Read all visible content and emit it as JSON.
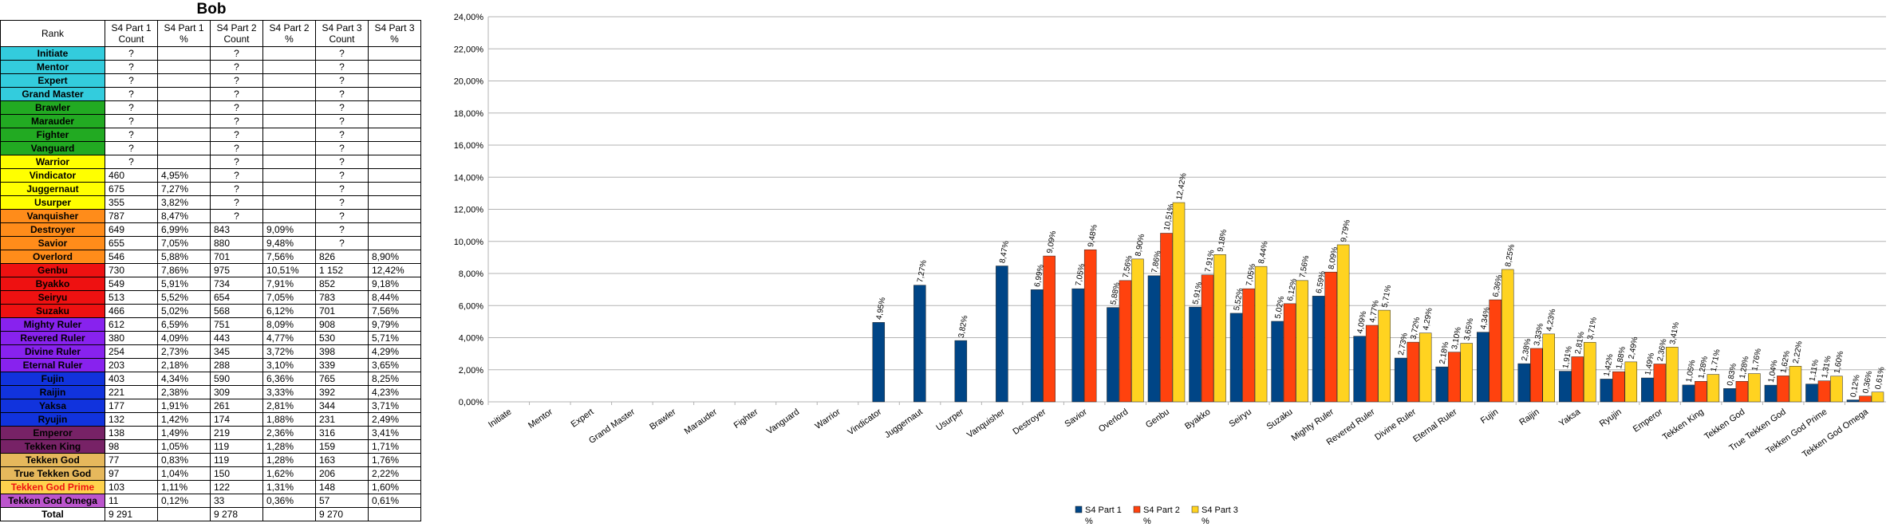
{
  "sheet": {
    "title": "Bob",
    "headers": [
      "Rank",
      "S4 Part 1 Count",
      "S4 Part 1 %",
      "S4 Part 2 Count",
      "S4 Part 2 %",
      "S4 Part 3 Count",
      "S4 Part 3 %"
    ],
    "rows": [
      {
        "rank": "Initiate",
        "bg": "#33ccdd",
        "c1": "?",
        "p1": "",
        "c2": "?",
        "p2": "",
        "c3": "?",
        "p3": ""
      },
      {
        "rank": "Mentor",
        "bg": "#33ccdd",
        "c1": "?",
        "p1": "",
        "c2": "?",
        "p2": "",
        "c3": "?",
        "p3": ""
      },
      {
        "rank": "Expert",
        "bg": "#33ccdd",
        "c1": "?",
        "p1": "",
        "c2": "?",
        "p2": "",
        "c3": "?",
        "p3": ""
      },
      {
        "rank": "Grand Master",
        "bg": "#33ccdd",
        "c1": "?",
        "p1": "",
        "c2": "?",
        "p2": "",
        "c3": "?",
        "p3": ""
      },
      {
        "rank": "Brawler",
        "bg": "#22aa22",
        "c1": "?",
        "p1": "",
        "c2": "?",
        "p2": "",
        "c3": "?",
        "p3": ""
      },
      {
        "rank": "Marauder",
        "bg": "#22aa22",
        "c1": "?",
        "p1": "",
        "c2": "?",
        "p2": "",
        "c3": "?",
        "p3": ""
      },
      {
        "rank": "Fighter",
        "bg": "#22aa22",
        "c1": "?",
        "p1": "",
        "c2": "?",
        "p2": "",
        "c3": "?",
        "p3": ""
      },
      {
        "rank": "Vanguard",
        "bg": "#22aa22",
        "c1": "?",
        "p1": "",
        "c2": "?",
        "p2": "",
        "c3": "?",
        "p3": ""
      },
      {
        "rank": "Warrior",
        "bg": "#ffff00",
        "c1": "?",
        "p1": "",
        "c2": "?",
        "p2": "",
        "c3": "?",
        "p3": ""
      },
      {
        "rank": "Vindicator",
        "bg": "#ffff00",
        "c1": "460",
        "p1": "4,95%",
        "c2": "?",
        "p2": "",
        "c3": "?",
        "p3": ""
      },
      {
        "rank": "Juggernaut",
        "bg": "#ffff00",
        "c1": "675",
        "p1": "7,27%",
        "c2": "?",
        "p2": "",
        "c3": "?",
        "p3": ""
      },
      {
        "rank": "Usurper",
        "bg": "#ffff00",
        "c1": "355",
        "p1": "3,82%",
        "c2": "?",
        "p2": "",
        "c3": "?",
        "p3": ""
      },
      {
        "rank": "Vanquisher",
        "bg": "#ff8c1a",
        "c1": "787",
        "p1": "8,47%",
        "c2": "?",
        "p2": "",
        "c3": "?",
        "p3": ""
      },
      {
        "rank": "Destroyer",
        "bg": "#ff8c1a",
        "c1": "649",
        "p1": "6,99%",
        "c2": "843",
        "p2": "9,09%",
        "c3": "?",
        "p3": ""
      },
      {
        "rank": "Savior",
        "bg": "#ff8c1a",
        "c1": "655",
        "p1": "7,05%",
        "c2": "880",
        "p2": "9,48%",
        "c3": "?",
        "p3": ""
      },
      {
        "rank": "Overlord",
        "bg": "#ff8c1a",
        "c1": "546",
        "p1": "5,88%",
        "c2": "701",
        "p2": "7,56%",
        "c3": "826",
        "p3": "8,90%"
      },
      {
        "rank": "Genbu",
        "bg": "#ee1111",
        "c1": "730",
        "p1": "7,86%",
        "c2": "975",
        "p2": "10,51%",
        "c3": "1 152",
        "p3": "12,42%"
      },
      {
        "rank": "Byakko",
        "bg": "#ee1111",
        "c1": "549",
        "p1": "5,91%",
        "c2": "734",
        "p2": "7,91%",
        "c3": "852",
        "p3": "9,18%"
      },
      {
        "rank": "Seiryu",
        "bg": "#ee1111",
        "c1": "513",
        "p1": "5,52%",
        "c2": "654",
        "p2": "7,05%",
        "c3": "783",
        "p3": "8,44%"
      },
      {
        "rank": "Suzaku",
        "bg": "#ee1111",
        "c1": "466",
        "p1": "5,02%",
        "c2": "568",
        "p2": "6,12%",
        "c3": "701",
        "p3": "7,56%"
      },
      {
        "rank": "Mighty Ruler",
        "bg": "#8822ee",
        "c1": "612",
        "p1": "6,59%",
        "c2": "751",
        "p2": "8,09%",
        "c3": "908",
        "p3": "9,79%"
      },
      {
        "rank": "Revered Ruler",
        "bg": "#8822ee",
        "c1": "380",
        "p1": "4,09%",
        "c2": "443",
        "p2": "4,77%",
        "c3": "530",
        "p3": "5,71%"
      },
      {
        "rank": "Divine Ruler",
        "bg": "#8822ee",
        "c1": "254",
        "p1": "2,73%",
        "c2": "345",
        "p2": "3,72%",
        "c3": "398",
        "p3": "4,29%"
      },
      {
        "rank": "Eternal Ruler",
        "bg": "#8822ee",
        "c1": "203",
        "p1": "2,18%",
        "c2": "288",
        "p2": "3,10%",
        "c3": "339",
        "p3": "3,65%"
      },
      {
        "rank": "Fujin",
        "bg": "#1133dd",
        "c1": "403",
        "p1": "4,34%",
        "c2": "590",
        "p2": "6,36%",
        "c3": "765",
        "p3": "8,25%"
      },
      {
        "rank": "Raijin",
        "bg": "#1133dd",
        "c1": "221",
        "p1": "2,38%",
        "c2": "309",
        "p2": "3,33%",
        "c3": "392",
        "p3": "4,23%"
      },
      {
        "rank": "Yaksa",
        "bg": "#1133dd",
        "c1": "177",
        "p1": "1,91%",
        "c2": "261",
        "p2": "2,81%",
        "c3": "344",
        "p3": "3,71%"
      },
      {
        "rank": "Ryujin",
        "bg": "#1133dd",
        "c1": "132",
        "p1": "1,42%",
        "c2": "174",
        "p2": "1,88%",
        "c3": "231",
        "p3": "2,49%"
      },
      {
        "rank": "Emperor",
        "bg": "#772266",
        "c1": "138",
        "p1": "1,49%",
        "c2": "219",
        "p2": "2,36%",
        "c3": "316",
        "p3": "3,41%"
      },
      {
        "rank": "Tekken King",
        "bg": "#772266",
        "c1": "98",
        "p1": "1,05%",
        "c2": "119",
        "p2": "1,28%",
        "c3": "159",
        "p3": "1,71%"
      },
      {
        "rank": "Tekken God",
        "bg": "#e6b85c",
        "c1": "77",
        "p1": "0,83%",
        "c2": "119",
        "p2": "1,28%",
        "c3": "163",
        "p3": "1,76%"
      },
      {
        "rank": "True Tekken God",
        "bg": "#e6b85c",
        "c1": "97",
        "p1": "1,04%",
        "c2": "150",
        "p2": "1,62%",
        "c3": "206",
        "p3": "2,22%"
      },
      {
        "rank": "Tekken God Prime",
        "bg": "#ffd24d",
        "c1": "103",
        "p1": "1,11%",
        "c2": "122",
        "p2": "1,31%",
        "c3": "148",
        "p3": "1,60%"
      },
      {
        "rank": "Tekken God Omega",
        "bg": "#bb55cc",
        "c1": "11",
        "p1": "0,12%",
        "c2": "33",
        "p2": "0,36%",
        "c3": "57",
        "p3": "0,61%"
      }
    ],
    "total": {
      "label": "Total",
      "c1": "9 291",
      "p1": "",
      "c2": "9 278",
      "p2": "",
      "c3": "9 270",
      "p3": ""
    },
    "text_colors": {
      "Tekken God Prime": "#ee1111",
      "Tekken God Omega": "#000000"
    }
  },
  "chart_data": {
    "type": "bar",
    "categories": [
      "Initiate",
      "Mentor",
      "Expert",
      "Grand Master",
      "Brawler",
      "Marauder",
      "Fighter",
      "Vanguard",
      "Warrior",
      "Vindicator",
      "Juggernaut",
      "Usurper",
      "Vanquisher",
      "Destroyer",
      "Savior",
      "Overlord",
      "Genbu",
      "Byakko",
      "Seiryu",
      "Suzaku",
      "Mighty Ruler",
      "Revered Ruler",
      "Divine Ruler",
      "Eternal Ruler",
      "Fujin",
      "Raijin",
      "Yaksa",
      "Ryujin",
      "Emperor",
      "Tekken King",
      "Tekken God",
      "True Tekken God",
      "Tekken God Prime",
      "Tekken God Omega"
    ],
    "series": [
      {
        "name": "S4 Part 1 %",
        "color": "#004586",
        "values": [
          null,
          null,
          null,
          null,
          null,
          null,
          null,
          null,
          null,
          4.95,
          7.27,
          3.82,
          8.47,
          6.99,
          7.05,
          5.88,
          7.86,
          5.91,
          5.52,
          5.02,
          6.59,
          4.09,
          2.73,
          2.18,
          4.34,
          2.38,
          1.91,
          1.42,
          1.49,
          1.05,
          0.83,
          1.04,
          1.11,
          0.12
        ]
      },
      {
        "name": "S4 Part 2 %",
        "color": "#ff420e",
        "values": [
          null,
          null,
          null,
          null,
          null,
          null,
          null,
          null,
          null,
          null,
          null,
          null,
          null,
          9.09,
          9.48,
          7.56,
          10.51,
          7.91,
          7.05,
          6.12,
          8.09,
          4.77,
          3.72,
          3.1,
          6.36,
          3.33,
          2.81,
          1.88,
          2.36,
          1.28,
          1.28,
          1.62,
          1.31,
          0.36
        ]
      },
      {
        "name": "S4 Part 3 %",
        "color": "#ffd320",
        "values": [
          null,
          null,
          null,
          null,
          null,
          null,
          null,
          null,
          null,
          null,
          null,
          null,
          null,
          null,
          null,
          8.9,
          12.42,
          9.18,
          8.44,
          7.56,
          9.79,
          5.71,
          4.29,
          3.65,
          8.25,
          4.23,
          3.71,
          2.49,
          3.41,
          1.71,
          1.76,
          2.22,
          1.6,
          0.61
        ]
      }
    ],
    "y_ticks": [
      "0,00%",
      "2,00%",
      "4,00%",
      "6,00%",
      "8,00%",
      "10,00%",
      "12,00%",
      "14,00%",
      "16,00%",
      "18,00%",
      "20,00%",
      "22,00%",
      "24,00%"
    ],
    "ylim": [
      0,
      24
    ],
    "grid": true,
    "legend_position": "bottom",
    "legend": [
      {
        "line1": "S4 Part 1",
        "line2": "%"
      },
      {
        "line1": "S4 Part 2",
        "line2": "%"
      },
      {
        "line1": "S4 Part 3",
        "line2": "%"
      }
    ],
    "data_labels": true,
    "label_format": "percent-comma-2"
  }
}
